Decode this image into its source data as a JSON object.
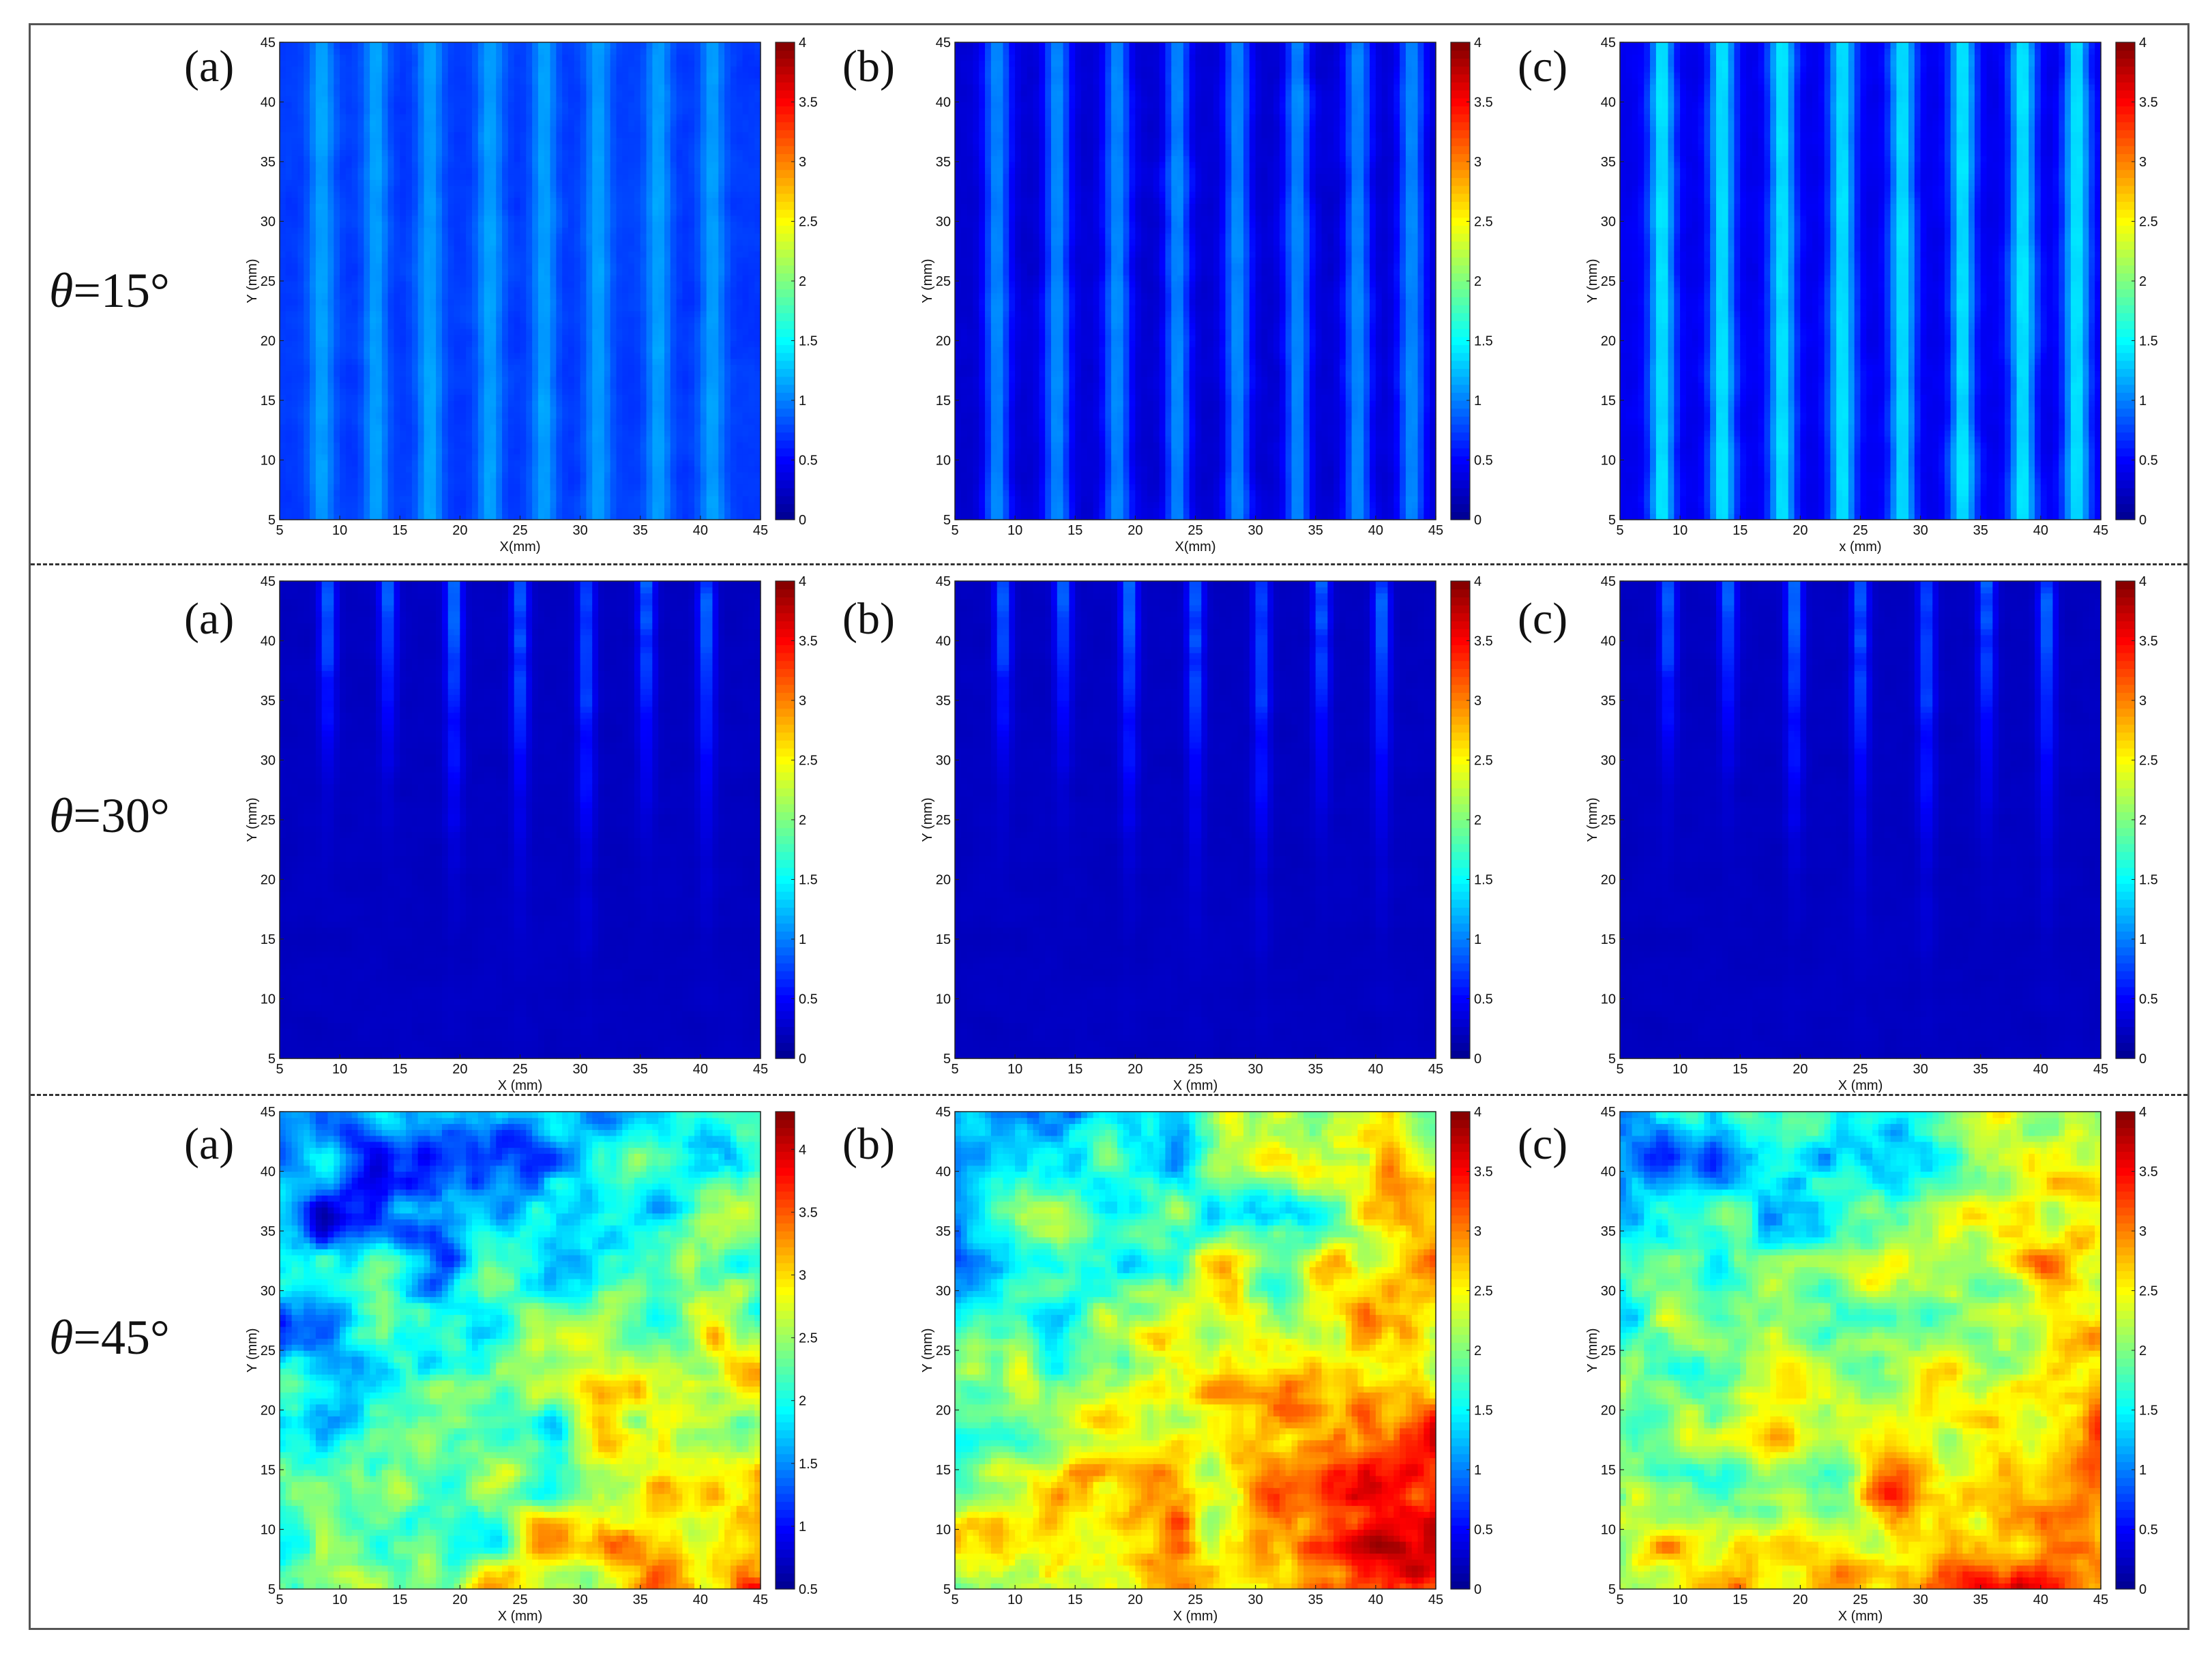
{
  "rows": [
    {
      "symbol": "θ",
      "value": "=15°"
    },
    {
      "symbol": "θ",
      "value": "=30°"
    },
    {
      "symbol": "θ",
      "value": "=45°"
    }
  ],
  "panel_tags": [
    "(a)",
    "(b)",
    "(c)"
  ],
  "colormap": [
    "#00008f",
    "#0000ff",
    "#0080ff",
    "#00ffff",
    "#80ff80",
    "#ffff00",
    "#ff8000",
    "#ff0000",
    "#800000"
  ],
  "chart_data": [
    {
      "type": "heatmap",
      "row": 0,
      "panel": "(a)",
      "xlabel": "X(mm)",
      "ylabel": "Y (mm)",
      "xlim": [
        5,
        45
      ],
      "ylim": [
        5,
        45
      ],
      "xticks": [
        5,
        10,
        15,
        20,
        25,
        30,
        35,
        40,
        45
      ],
      "yticks": [
        5,
        10,
        15,
        20,
        25,
        30,
        35,
        40,
        45
      ],
      "clim": [
        0,
        4
      ],
      "cticks": [
        "0",
        "0.5",
        "1",
        "1.5",
        "2",
        "2.5",
        "3",
        "3.5",
        "4"
      ],
      "pattern": "stripes",
      "base": 0.72,
      "amp": 0.42,
      "stripe_x": [
        8.5,
        13,
        17.5,
        22.5,
        27,
        31.5,
        36.5,
        41
      ]
    },
    {
      "type": "heatmap",
      "row": 0,
      "panel": "(b)",
      "xlabel": "X(mm)",
      "ylabel": "Y (mm)",
      "xlim": [
        5,
        45
      ],
      "ylim": [
        5,
        45
      ],
      "xticks": [
        5,
        10,
        15,
        20,
        25,
        30,
        35,
        40,
        45
      ],
      "yticks": [
        5,
        10,
        15,
        20,
        25,
        30,
        35,
        40,
        45
      ],
      "clim": [
        0,
        4
      ],
      "cticks": [
        "0",
        "0.5",
        "1",
        "1.5",
        "2",
        "2.5",
        "3",
        "3.5",
        "4"
      ],
      "pattern": "stripes",
      "base": 0.3,
      "amp": 0.75,
      "stripe_x": [
        8.5,
        13.5,
        18.5,
        23.5,
        28.5,
        33.5,
        38.5,
        43
      ]
    },
    {
      "type": "heatmap",
      "row": 0,
      "panel": "(c)",
      "xlabel": "x (mm)",
      "ylabel": "Y (mm)",
      "xlim": [
        5,
        45
      ],
      "ylim": [
        5,
        45
      ],
      "xticks": [
        5,
        10,
        15,
        20,
        25,
        30,
        35,
        40,
        45
      ],
      "yticks": [
        5,
        10,
        15,
        20,
        25,
        30,
        35,
        40,
        45
      ],
      "clim": [
        0,
        4
      ],
      "cticks": [
        "0",
        "0.5",
        "1",
        "1.5",
        "2",
        "2.5",
        "3",
        "3.5",
        "4"
      ],
      "pattern": "stripes",
      "base": 0.42,
      "amp": 1.0,
      "stripe_x": [
        8.5,
        13.5,
        18.5,
        23.5,
        28.5,
        33.5,
        38.5,
        43
      ]
    },
    {
      "type": "heatmap",
      "row": 1,
      "panel": "(a)",
      "xlabel": "X (mm)",
      "ylabel": "Y (mm)",
      "xlim": [
        5,
        45
      ],
      "ylim": [
        5,
        45
      ],
      "xticks": [
        5,
        10,
        15,
        20,
        25,
        30,
        35,
        40,
        45
      ],
      "yticks": [
        5,
        10,
        15,
        20,
        25,
        30,
        35,
        40,
        45
      ],
      "clim": [
        0,
        4
      ],
      "cticks": [
        "0",
        "0.5",
        "1",
        "1.5",
        "2",
        "2.5",
        "3",
        "3.5",
        "4"
      ],
      "pattern": "drips",
      "base": 0.18,
      "amp": 0.8,
      "stripe_x": [
        9,
        14,
        19.5,
        25,
        30.5,
        35.5,
        40.5
      ]
    },
    {
      "type": "heatmap",
      "row": 1,
      "panel": "(b)",
      "xlabel": "X (mm)",
      "ylabel": "Y (mm)",
      "xlim": [
        5,
        45
      ],
      "ylim": [
        5,
        45
      ],
      "xticks": [
        5,
        10,
        15,
        20,
        25,
        30,
        35,
        40,
        45
      ],
      "yticks": [
        5,
        10,
        15,
        20,
        25,
        30,
        35,
        40,
        45
      ],
      "clim": [
        0,
        4
      ],
      "cticks": [
        "0",
        "0.5",
        "1",
        "1.5",
        "2",
        "2.5",
        "3",
        "3.5",
        "4"
      ],
      "pattern": "drips",
      "base": 0.18,
      "amp": 0.8,
      "stripe_x": [
        9,
        14,
        19.5,
        25,
        30.5,
        35.5,
        40.5
      ]
    },
    {
      "type": "heatmap",
      "row": 1,
      "panel": "(c)",
      "xlabel": "X (mm)",
      "ylabel": "Y (mm)",
      "xlim": [
        5,
        45
      ],
      "ylim": [
        5,
        45
      ],
      "xticks": [
        5,
        10,
        15,
        20,
        25,
        30,
        35,
        40,
        45
      ],
      "yticks": [
        5,
        10,
        15,
        20,
        25,
        30,
        35,
        40,
        45
      ],
      "clim": [
        0,
        4
      ],
      "cticks": [
        "0",
        "0.5",
        "1",
        "1.5",
        "2",
        "2.5",
        "3",
        "3.5",
        "4"
      ],
      "pattern": "drips",
      "base": 0.18,
      "amp": 0.8,
      "stripe_x": [
        9,
        14,
        19.5,
        25,
        30.5,
        35.5,
        40.5
      ]
    },
    {
      "type": "heatmap",
      "row": 2,
      "panel": "(a)",
      "xlabel": "X (mm)",
      "ylabel": "Y (mm)",
      "xlim": [
        5,
        45
      ],
      "ylim": [
        5,
        45
      ],
      "xticks": [
        5,
        10,
        15,
        20,
        25,
        30,
        35,
        40,
        45
      ],
      "yticks": [
        5,
        10,
        15,
        20,
        25,
        30,
        35,
        40,
        45
      ],
      "clim": [
        0.5,
        4.3
      ],
      "cticks": [
        "0.5",
        "1",
        "1.5",
        "2",
        "2.5",
        "3",
        "3.5",
        "4"
      ],
      "pattern": "blob",
      "base": 2.2,
      "amp": 1.3
    },
    {
      "type": "heatmap",
      "row": 2,
      "panel": "(b)",
      "xlabel": "X (mm)",
      "ylabel": "Y (mm)",
      "xlim": [
        5,
        45
      ],
      "ylim": [
        5,
        45
      ],
      "xticks": [
        5,
        10,
        15,
        20,
        25,
        30,
        35,
        40,
        45
      ],
      "yticks": [
        5,
        10,
        15,
        20,
        25,
        30,
        35,
        40,
        45
      ],
      "clim": [
        0,
        4
      ],
      "cticks": [
        "0",
        "0.5",
        "1",
        "1.5",
        "2",
        "2.5",
        "3",
        "3.5",
        "4"
      ],
      "pattern": "blob",
      "base": 2.25,
      "amp": 1.35
    },
    {
      "type": "heatmap",
      "row": 2,
      "panel": "(c)",
      "xlabel": "X (mm)",
      "ylabel": "Y (mm)",
      "xlim": [
        5,
        45
      ],
      "ylim": [
        5,
        45
      ],
      "xticks": [
        5,
        10,
        15,
        20,
        25,
        30,
        35,
        40,
        45
      ],
      "yticks": [
        5,
        10,
        15,
        20,
        25,
        30,
        35,
        40,
        45
      ],
      "clim": [
        0,
        4
      ],
      "cticks": [
        "0",
        "0.5",
        "1",
        "1.5",
        "2",
        "2.5",
        "3",
        "3.5",
        "4"
      ],
      "pattern": "blob",
      "base": 2.2,
      "amp": 1.3
    }
  ]
}
